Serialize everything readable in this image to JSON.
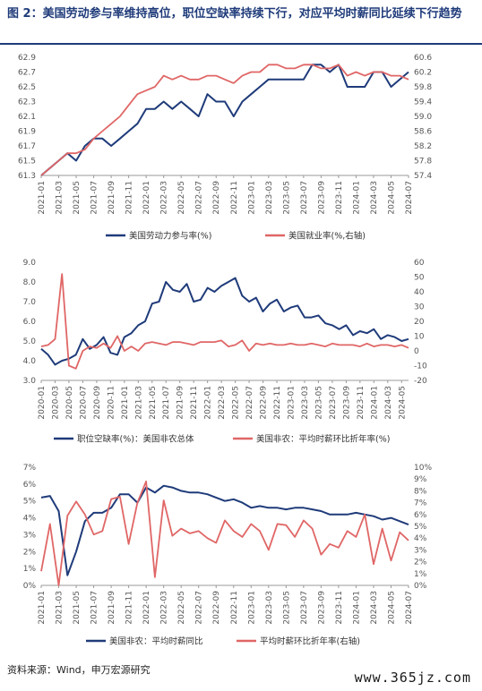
{
  "title": "图 2：美国劳动参与率维持高位，职位空缺率持续下行，对应平均时薪同比延续下行趋势",
  "source": "资料来源：Wind，申万宏源研究",
  "watermark": "www.365jz.com",
  "colors": {
    "navy": "#1f3b7a",
    "red": "#e06666",
    "axis": "#999999"
  },
  "chart_data": [
    {
      "type": "line",
      "x": [
        "2021-01",
        "2021-02",
        "2021-03",
        "2021-04",
        "2021-05",
        "2021-06",
        "2021-07",
        "2021-08",
        "2021-09",
        "2021-10",
        "2021-11",
        "2021-12",
        "2022-01",
        "2022-02",
        "2022-03",
        "2022-04",
        "2022-05",
        "2022-06",
        "2022-07",
        "2022-08",
        "2022-09",
        "2022-10",
        "2022-11",
        "2022-12",
        "2023-01",
        "2023-02",
        "2023-03",
        "2023-04",
        "2023-05",
        "2023-06",
        "2023-07",
        "2023-08",
        "2023-09",
        "2023-10",
        "2023-11",
        "2023-12",
        "2024-01",
        "2024-02",
        "2024-03",
        "2024-04",
        "2024-05",
        "2024-06",
        "2024-07"
      ],
      "x_ticks": [
        "2021-01",
        "2021-03",
        "2021-05",
        "2021-07",
        "2021-09",
        "2021-11",
        "2022-01",
        "2022-03",
        "2022-05",
        "2022-07",
        "2022-09",
        "2022-11",
        "2023-01",
        "2023-03",
        "2023-05",
        "2023-07",
        "2023-09",
        "2023-11",
        "2024-01",
        "2024-03",
        "2024-05",
        "2024-07"
      ],
      "y_left": {
        "ylim": [
          61.3,
          62.9
        ],
        "ticks": [
          "61.3",
          "61.5",
          "61.7",
          "61.9",
          "62.1",
          "62.3",
          "62.5",
          "62.7",
          "62.9"
        ]
      },
      "y_right": {
        "ylim": [
          57.4,
          60.6
        ],
        "ticks": [
          "57.4",
          "57.8",
          "58.2",
          "58.6",
          "59.0",
          "59.4",
          "59.8",
          "60.2",
          "60.6"
        ]
      },
      "series": [
        {
          "name": "美国劳动力参与率(%)",
          "axis": "left",
          "color": "#1f3b7a",
          "values": [
            61.3,
            61.4,
            61.5,
            61.6,
            61.5,
            61.7,
            61.8,
            61.8,
            61.7,
            61.8,
            61.9,
            62.0,
            62.2,
            62.2,
            62.3,
            62.2,
            62.3,
            62.2,
            62.1,
            62.4,
            62.3,
            62.3,
            62.1,
            62.3,
            62.4,
            62.5,
            62.6,
            62.6,
            62.6,
            62.6,
            62.6,
            62.8,
            62.8,
            62.7,
            62.8,
            62.5,
            62.5,
            62.5,
            62.7,
            62.7,
            62.5,
            62.6,
            62.7
          ]
        },
        {
          "name": "美国就业率(%,右轴)",
          "axis": "right",
          "color": "#e06666",
          "values": [
            57.4,
            57.6,
            57.8,
            58.0,
            58.0,
            58.1,
            58.4,
            58.6,
            58.8,
            59.0,
            59.3,
            59.6,
            59.7,
            59.8,
            60.1,
            60.0,
            60.1,
            60.0,
            60.0,
            60.1,
            60.1,
            60.0,
            59.9,
            60.1,
            60.2,
            60.2,
            60.4,
            60.4,
            60.3,
            60.3,
            60.4,
            60.4,
            60.3,
            60.3,
            60.4,
            60.1,
            60.2,
            60.1,
            60.2,
            60.2,
            60.1,
            60.1,
            60.0
          ]
        }
      ]
    },
    {
      "type": "line",
      "x": [
        "2020-01",
        "2020-02",
        "2020-03",
        "2020-04",
        "2020-05",
        "2020-06",
        "2020-07",
        "2020-08",
        "2020-09",
        "2020-10",
        "2020-11",
        "2020-12",
        "2021-01",
        "2021-02",
        "2021-03",
        "2021-04",
        "2021-05",
        "2021-06",
        "2021-07",
        "2021-08",
        "2021-09",
        "2021-10",
        "2021-11",
        "2021-12",
        "2022-01",
        "2022-02",
        "2022-03",
        "2022-04",
        "2022-05",
        "2022-06",
        "2022-07",
        "2022-08",
        "2022-09",
        "2022-10",
        "2022-11",
        "2022-12",
        "2023-01",
        "2023-02",
        "2023-03",
        "2023-04",
        "2023-05",
        "2023-06",
        "2023-07",
        "2023-08",
        "2023-09",
        "2023-10",
        "2023-11",
        "2023-12",
        "2024-01",
        "2024-02",
        "2024-03",
        "2024-04",
        "2024-05",
        "2024-06"
      ],
      "x_ticks": [
        "2020-01",
        "2020-03",
        "2020-05",
        "2020-07",
        "2020-09",
        "2020-11",
        "2021-01",
        "2021-03",
        "2021-05",
        "2021-07",
        "2021-09",
        "2021-11",
        "2022-01",
        "2022-03",
        "2022-05",
        "2022-07",
        "2022-09",
        "2022-11",
        "2023-01",
        "2023-03",
        "2023-05",
        "2023-07",
        "2023-09",
        "2023-11",
        "2024-01",
        "2024-03",
        "2024-05"
      ],
      "y_left": {
        "ylim": [
          3.0,
          9.0
        ],
        "ticks": [
          "3.0",
          "4.0",
          "5.0",
          "6.0",
          "7.0",
          "8.0",
          "9.0"
        ]
      },
      "y_right": {
        "ylim": [
          -20,
          60
        ],
        "ticks": [
          "-20",
          "-10",
          "0",
          "10",
          "20",
          "30",
          "40",
          "50",
          "60"
        ]
      },
      "series": [
        {
          "name": "职位空缺率(%)：美国非农总体",
          "axis": "left",
          "color": "#1f3b7a",
          "values": [
            4.6,
            4.3,
            3.8,
            4.0,
            4.1,
            4.3,
            5.1,
            4.6,
            4.8,
            5.2,
            4.4,
            4.3,
            5.2,
            5.4,
            5.8,
            6.0,
            6.9,
            7.0,
            8.0,
            7.6,
            7.5,
            7.9,
            7.0,
            7.1,
            7.7,
            7.5,
            7.8,
            8.0,
            8.2,
            7.3,
            7.0,
            7.2,
            6.5,
            6.9,
            7.1,
            6.5,
            6.7,
            6.8,
            6.2,
            6.2,
            6.3,
            5.9,
            5.8,
            5.6,
            5.8,
            5.3,
            5.5,
            5.4,
            5.6,
            5.1,
            5.3,
            5.2,
            5.0,
            5.1
          ]
        },
        {
          "name": "美国非农：平均时薪环比折年率(%)",
          "axis": "right",
          "color": "#e06666",
          "values": [
            3,
            4,
            8,
            52,
            -10,
            -12,
            0,
            3,
            2,
            5,
            2,
            10,
            0,
            3,
            0,
            5,
            6,
            5,
            4,
            6,
            6,
            5,
            4,
            6,
            6,
            6,
            7,
            3,
            4,
            7,
            0,
            5,
            4,
            5,
            4,
            4,
            5,
            4,
            4,
            5,
            4,
            3,
            5,
            4,
            4,
            4,
            3,
            5,
            3,
            4,
            4,
            3,
            4,
            2
          ]
        }
      ]
    },
    {
      "type": "line",
      "x": [
        "2021-01",
        "2021-02",
        "2021-03",
        "2021-04",
        "2021-05",
        "2021-06",
        "2021-07",
        "2021-08",
        "2021-09",
        "2021-10",
        "2021-11",
        "2021-12",
        "2022-01",
        "2022-02",
        "2022-03",
        "2022-04",
        "2022-05",
        "2022-06",
        "2022-07",
        "2022-08",
        "2022-09",
        "2022-10",
        "2022-11",
        "2022-12",
        "2023-01",
        "2023-02",
        "2023-03",
        "2023-04",
        "2023-05",
        "2023-06",
        "2023-07",
        "2023-08",
        "2023-09",
        "2023-10",
        "2023-11",
        "2023-12",
        "2024-01",
        "2024-02",
        "2024-03",
        "2024-04",
        "2024-05",
        "2024-06",
        "2024-07"
      ],
      "x_ticks": [
        "2021-01",
        "2021-03",
        "2021-05",
        "2021-07",
        "2021-09",
        "2021-11",
        "2022-01",
        "2022-03",
        "2022-05",
        "2022-07",
        "2022-09",
        "2022-11",
        "2023-01",
        "2023-03",
        "2023-05",
        "2023-07",
        "2023-09",
        "2023-11",
        "2024-01",
        "2024-03",
        "2024-05",
        "2024-07"
      ],
      "y_left": {
        "ylim": [
          0,
          7
        ],
        "ticks": [
          "0%",
          "1%",
          "2%",
          "3%",
          "4%",
          "5%",
          "6%",
          "7%"
        ]
      },
      "y_right": {
        "ylim": [
          0,
          10
        ],
        "ticks": [
          "0%",
          "1%",
          "2%",
          "3%",
          "4%",
          "5%",
          "6%",
          "7%",
          "8%",
          "9%",
          "10%"
        ]
      },
      "series": [
        {
          "name": "美国非农：平均时薪同比",
          "axis": "left",
          "color": "#1f3b7a",
          "values": [
            5.2,
            5.3,
            4.4,
            0.6,
            2.0,
            3.8,
            4.3,
            4.3,
            4.6,
            5.4,
            5.4,
            4.9,
            5.8,
            5.5,
            5.9,
            5.8,
            5.6,
            5.5,
            5.5,
            5.4,
            5.2,
            5.0,
            5.1,
            4.9,
            4.6,
            4.7,
            4.6,
            4.6,
            4.5,
            4.6,
            4.6,
            4.5,
            4.4,
            4.2,
            4.2,
            4.2,
            4.3,
            4.2,
            4.1,
            3.9,
            4.0,
            3.8,
            3.6
          ]
        },
        {
          "name": "平均时薪环比折年率(右轴)",
          "axis": "right",
          "color": "#e06666",
          "values": [
            1.2,
            5.2,
            0.0,
            5.9,
            7.1,
            6.0,
            4.3,
            4.6,
            7.3,
            7.5,
            3.5,
            7.0,
            8.8,
            0.7,
            7.2,
            4.2,
            4.8,
            4.4,
            4.6,
            4.0,
            3.6,
            5.5,
            4.6,
            4.1,
            5.2,
            4.6,
            3.0,
            5.2,
            5.1,
            4.1,
            5.5,
            4.8,
            2.6,
            3.5,
            3.2,
            4.6,
            4.1,
            6.0,
            1.8,
            4.8,
            2.1,
            4.5,
            3.8
          ]
        }
      ]
    }
  ]
}
